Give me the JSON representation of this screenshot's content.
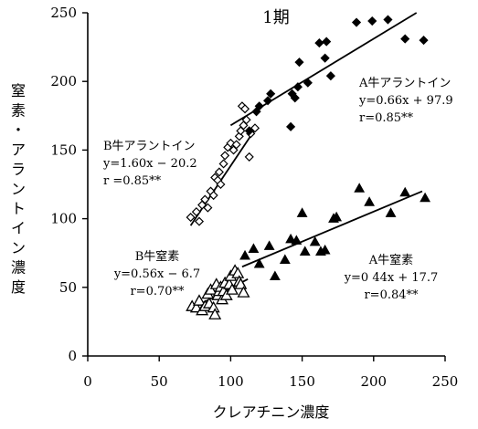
{
  "chart_data": {
    "type": "scatter",
    "title": "1期",
    "xlabel": "クレアチニン濃度",
    "ylabel": "窒素・アラントイン濃度",
    "xlim": [
      0,
      250
    ],
    "ylim": [
      0,
      250
    ],
    "xticks": [
      "0",
      "50",
      "100",
      "150",
      "200",
      "250"
    ],
    "yticks": [
      "0",
      "50",
      "100",
      "150",
      "200",
      "250"
    ],
    "grid": false,
    "series": [
      {
        "key": "b_allantoin",
        "marker": "open-diamond",
        "points": [
          [
            72,
            101
          ],
          [
            76,
            105
          ],
          [
            78,
            98
          ],
          [
            80,
            110
          ],
          [
            82,
            114
          ],
          [
            84,
            108
          ],
          [
            86,
            120
          ],
          [
            88,
            117
          ],
          [
            89,
            130
          ],
          [
            91,
            128
          ],
          [
            92,
            134
          ],
          [
            93,
            125
          ],
          [
            95,
            140
          ],
          [
            96,
            146
          ],
          [
            98,
            152
          ],
          [
            100,
            155
          ],
          [
            102,
            150
          ],
          [
            104,
            154
          ],
          [
            106,
            160
          ],
          [
            107,
            164
          ],
          [
            109,
            168
          ],
          [
            111,
            172
          ],
          [
            108,
            182
          ],
          [
            110,
            180
          ],
          [
            113,
            145
          ],
          [
            114,
            162
          ],
          [
            117,
            166
          ]
        ],
        "fit": {
          "x": [
            72,
            117
          ],
          "y": [
            95,
            165
          ]
        }
      },
      {
        "key": "a_allantoin",
        "marker": "filled-diamond",
        "points": [
          [
            113,
            164
          ],
          [
            118,
            178
          ],
          [
            120,
            182
          ],
          [
            126,
            186
          ],
          [
            128,
            191
          ],
          [
            143,
            191
          ],
          [
            145,
            188
          ],
          [
            147,
            196
          ],
          [
            148,
            214
          ],
          [
            154,
            199
          ],
          [
            162,
            228
          ],
          [
            166,
            217
          ],
          [
            167,
            229
          ],
          [
            170,
            204
          ],
          [
            142,
            167
          ],
          [
            188,
            243
          ],
          [
            199,
            244
          ],
          [
            210,
            245
          ],
          [
            222,
            231
          ],
          [
            235,
            230
          ]
        ],
        "fit": {
          "x": [
            100,
            230
          ],
          "y": [
            168,
            250
          ]
        }
      },
      {
        "key": "b_nitrogen",
        "marker": "open-triangle",
        "points": [
          [
            73,
            36
          ],
          [
            76,
            35
          ],
          [
            78,
            40
          ],
          [
            80,
            33
          ],
          [
            82,
            36
          ],
          [
            84,
            45
          ],
          [
            85,
            38
          ],
          [
            86,
            48
          ],
          [
            88,
            35
          ],
          [
            89,
            30
          ],
          [
            90,
            52
          ],
          [
            91,
            44
          ],
          [
            92,
            47
          ],
          [
            93,
            50
          ],
          [
            94,
            41
          ],
          [
            95,
            47
          ],
          [
            96,
            53
          ],
          [
            97,
            44
          ],
          [
            99,
            52
          ],
          [
            100,
            58
          ],
          [
            101,
            48
          ],
          [
            103,
            62
          ],
          [
            105,
            60
          ],
          [
            106,
            54
          ],
          [
            107,
            52
          ],
          [
            109,
            46
          ]
        ],
        "fit": {
          "x": [
            70,
            112
          ],
          "y": [
            33,
            56
          ]
        }
      },
      {
        "key": "a_nitrogen",
        "marker": "filled-triangle",
        "points": [
          [
            110,
            73
          ],
          [
            116,
            78
          ],
          [
            120,
            67
          ],
          [
            127,
            80
          ],
          [
            131,
            58
          ],
          [
            138,
            70
          ],
          [
            142,
            85
          ],
          [
            146,
            84
          ],
          [
            150,
            104
          ],
          [
            152,
            76
          ],
          [
            159,
            83
          ],
          [
            163,
            76
          ],
          [
            166,
            77
          ],
          [
            172,
            100
          ],
          [
            174,
            101
          ],
          [
            190,
            122
          ],
          [
            197,
            112
          ],
          [
            212,
            104
          ],
          [
            222,
            119
          ],
          [
            236,
            115
          ]
        ],
        "fit": {
          "x": [
            108,
            234
          ],
          "y": [
            65,
            120
          ]
        }
      }
    ],
    "annotations": [
      {
        "key": "b_allantoin",
        "lines": [
          "B牛アラントイン",
          "y=1.60x − 20.2",
          "r =0.85**"
        ]
      },
      {
        "key": "a_allantoin",
        "lines": [
          "A牛アラントイン",
          "y=0.66x + 97.9",
          "r=0.85**"
        ]
      },
      {
        "key": "b_nitrogen",
        "lines": [
          "B牛窒素",
          "y=0.56x − 6.7",
          "r=0.70**"
        ]
      },
      {
        "key": "a_nitrogen",
        "lines": [
          "A牛窒素",
          "y=0 44x + 17.7",
          "r=0.84**"
        ]
      }
    ]
  }
}
